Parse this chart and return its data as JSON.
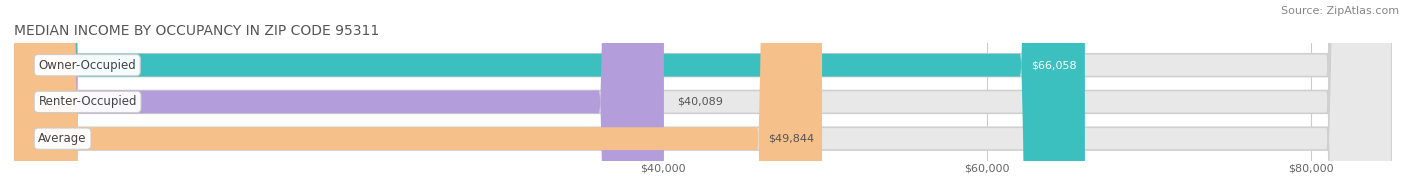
{
  "title": "MEDIAN INCOME BY OCCUPANCY IN ZIP CODE 95311",
  "source": "Source: ZipAtlas.com",
  "categories": [
    "Owner-Occupied",
    "Renter-Occupied",
    "Average"
  ],
  "values": [
    66058,
    40089,
    49844
  ],
  "labels": [
    "$66,058",
    "$40,089",
    "$49,844"
  ],
  "bar_colors": [
    "#3bbfbf",
    "#b39ddb",
    "#f5c08a"
  ],
  "label_text_colors": [
    "#ffffff",
    "#555555",
    "#555555"
  ],
  "bg_bar_color": "#e8e8e8",
  "xlim_min": 0,
  "xlim_max": 85000,
  "xticks": [
    40000,
    60000,
    80000
  ],
  "xtick_labels": [
    "$40,000",
    "$60,000",
    "$80,000"
  ],
  "figsize": [
    14.06,
    1.96
  ],
  "dpi": 100,
  "title_fontsize": 10,
  "source_fontsize": 8,
  "bar_height": 0.62,
  "label_fontsize": 8,
  "category_fontsize": 8.5
}
